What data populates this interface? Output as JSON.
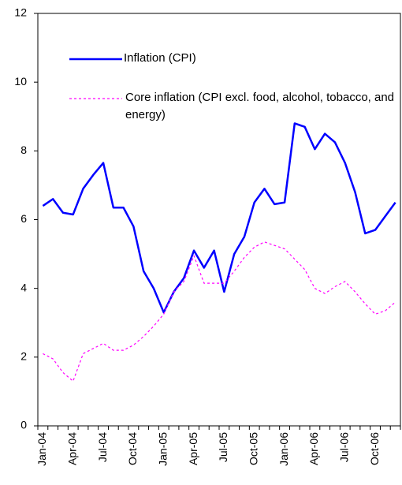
{
  "chart_data": {
    "type": "line",
    "categories": [
      "Jan-04",
      null,
      null,
      "Apr-04",
      null,
      null,
      "Jul-04",
      null,
      null,
      "Oct-04",
      null,
      null,
      "Jan-05",
      null,
      null,
      "Apr-05",
      null,
      null,
      "Jul-05",
      null,
      null,
      "Oct-05",
      null,
      null,
      "Jan-06",
      null,
      null,
      "Apr-06",
      null,
      null,
      "Jul-06",
      null,
      null,
      "Oct-06",
      null,
      null
    ],
    "series": [
      {
        "name": "Inflation (CPI)",
        "color": "#0000ff",
        "style": "solid",
        "values": [
          6.4,
          6.6,
          6.2,
          6.15,
          6.9,
          7.3,
          7.65,
          6.35,
          6.35,
          5.8,
          4.5,
          4.0,
          3.3,
          3.9,
          4.3,
          5.1,
          4.6,
          5.1,
          3.9,
          5.0,
          5.5,
          6.5,
          6.9,
          6.45,
          6.5,
          8.8,
          8.7,
          8.05,
          8.5,
          8.25,
          7.65,
          6.8,
          5.6,
          5.7,
          6.1,
          6.5
        ]
      },
      {
        "name": "Core inflation (CPI excl. food, alcohol, tobacco, and energy)",
        "color": "#ff00ff",
        "style": "dashed",
        "values": [
          2.1,
          1.95,
          1.55,
          1.3,
          2.1,
          2.25,
          2.4,
          2.2,
          2.2,
          2.35,
          2.6,
          2.9,
          3.25,
          3.9,
          4.2,
          4.95,
          4.15,
          4.15,
          4.15,
          4.5,
          4.9,
          5.2,
          5.35,
          5.25,
          5.15,
          4.85,
          4.55,
          4.0,
          3.85,
          4.05,
          4.2,
          3.9,
          3.55,
          3.25,
          3.35,
          3.6
        ]
      }
    ],
    "ylim": [
      0,
      12
    ],
    "yticks": [
      0,
      2,
      4,
      6,
      8,
      10,
      12
    ],
    "grid": false
  }
}
